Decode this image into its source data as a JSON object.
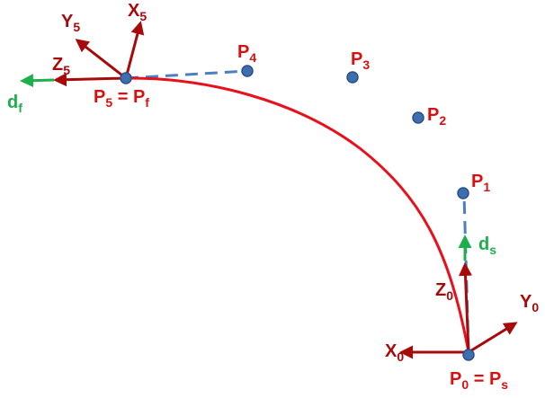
{
  "colors": {
    "trajectory": "#e8101a",
    "frame_axis": "#a80a0a",
    "label_red": "#d81010",
    "direction_green": "#1bb04b",
    "control_point_fill": "#3d6fb0",
    "control_point_stroke": "#2a4f86",
    "dashed_line": "#4a7fc1"
  },
  "points": [
    {
      "name": "P1",
      "base": "P",
      "sub": "1"
    },
    {
      "name": "P2",
      "base": "P",
      "sub": "2"
    },
    {
      "name": "P3",
      "base": "P",
      "sub": "3"
    },
    {
      "name": "P4",
      "base": "P",
      "sub": "4"
    }
  ],
  "start": {
    "label": {
      "base": "P",
      "sub": "0",
      "eq": " = ",
      "base2": "P",
      "sub2": "s"
    },
    "axes": {
      "x": {
        "base": "X",
        "sub": "0"
      },
      "y": {
        "base": "Y",
        "sub": "0"
      },
      "z": {
        "base": "Z",
        "sub": "0"
      }
    },
    "direction": {
      "base": "d",
      "sub": "s"
    }
  },
  "end": {
    "label": {
      "base": "P",
      "sub": "5",
      "eq": " = ",
      "base2": "P",
      "sub2": "f"
    },
    "axes": {
      "x": {
        "base": "X",
        "sub": "5"
      },
      "y": {
        "base": "Y",
        "sub": "5"
      },
      "z": {
        "base": "Z",
        "sub": "5"
      }
    },
    "direction": {
      "base": "d",
      "sub": "f"
    }
  }
}
